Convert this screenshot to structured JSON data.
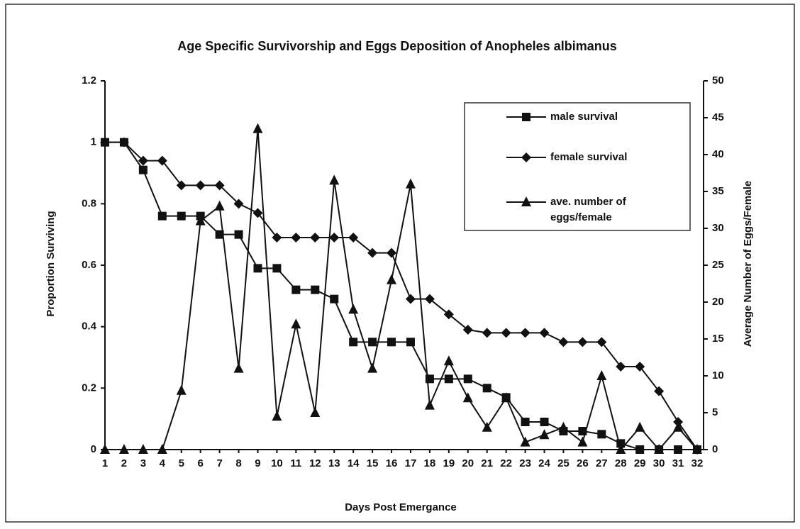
{
  "chart_data": {
    "type": "line",
    "title": "Age Specific Survivorship and Eggs Deposition of Anopheles albimanus",
    "x_label": "Days Post Emergance",
    "y_label": "Proportion Surviving",
    "y2_label": "Average Number of Eggs/Female",
    "categories": [
      "1",
      "2",
      "3",
      "4",
      "5",
      "6",
      "7",
      "8",
      "9",
      "10",
      "11",
      "12",
      "13",
      "14",
      "15",
      "16",
      "17",
      "18",
      "19",
      "20",
      "21",
      "22",
      "23",
      "24",
      "25",
      "26",
      "27",
      "28",
      "29",
      "30",
      "31",
      "32"
    ],
    "series": [
      {
        "name": "male survival",
        "color": "#111111",
        "marker": "square",
        "values": [
          1,
          1,
          0.91,
          0.76,
          0.76,
          0.76,
          0.7,
          0.7,
          0.59,
          0.59,
          0.52,
          0.52,
          0.49,
          0.35,
          0.35,
          0.35,
          0.35,
          0.23,
          0.23,
          0.23,
          0.2,
          0.17,
          0.09,
          0.09,
          0.06,
          0.06,
          0.05,
          0.02,
          0,
          0,
          0,
          0
        ]
      },
      {
        "name": "female survival",
        "color": "#111111",
        "marker": "diamond",
        "values": [
          1,
          1,
          0.94,
          0.94,
          0.86,
          0.86,
          0.86,
          0.8,
          0.77,
          0.69,
          0.69,
          0.69,
          0.69,
          0.69,
          0.64,
          0.64,
          0.49,
          0.49,
          0.44,
          0.39,
          0.38,
          0.38,
          0.38,
          0.38,
          0.35,
          0.35,
          0.35,
          0.27,
          0.27,
          0.19,
          0.09,
          0
        ]
      },
      {
        "name": "ave. number of eggs/female",
        "color": "#111111",
        "marker": "triangle",
        "axis": "y2",
        "values": [
          0,
          0,
          0,
          0,
          8,
          31,
          33,
          11,
          43.5,
          4.5,
          17,
          5,
          36.5,
          19,
          11,
          23,
          36,
          6,
          12,
          7,
          3,
          7,
          1,
          2,
          3,
          1,
          10,
          0,
          3,
          0,
          3,
          0
        ]
      }
    ],
    "ylim": [
      0,
      1.2
    ],
    "yticks": [
      0,
      0.2,
      0.4,
      0.6,
      0.8,
      1,
      1.2
    ],
    "y2lim": [
      0,
      50
    ],
    "y2ticks": [
      0,
      5,
      10,
      15,
      20,
      25,
      30,
      35,
      40,
      45,
      50
    ],
    "legend": "upper right"
  }
}
